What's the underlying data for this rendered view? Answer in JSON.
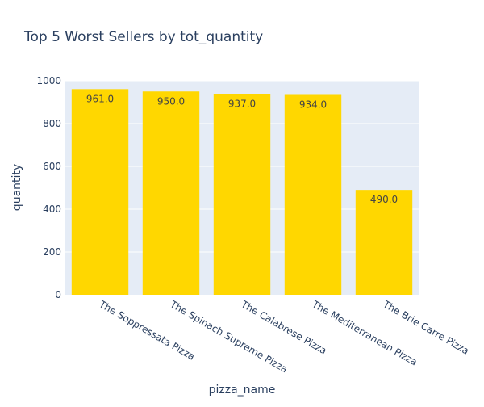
{
  "chart_data": {
    "type": "bar",
    "title": "Top 5 Worst Sellers by tot_quantity",
    "xlabel": "pizza_name",
    "ylabel": "quantity",
    "categories": [
      "The Soppressata Pizza",
      "The Spinach Supreme Pizza",
      "The Calabrese Pizza",
      "The Mediterranean Pizza",
      "The Brie Carre Pizza"
    ],
    "values": [
      961,
      950,
      937,
      934,
      490
    ],
    "data_labels": [
      "961.0",
      "950.0",
      "937.0",
      "934.0",
      "490.0"
    ],
    "ylim": [
      0,
      1000
    ],
    "yticks": [
      0,
      200,
      400,
      600,
      800,
      1000
    ],
    "ytick_labels": [
      "0",
      "200",
      "400",
      "600",
      "800",
      "1000"
    ],
    "grid": true,
    "colors": {
      "bar": "#FFD700",
      "plot_bg": "#E5ECF6",
      "grid": "#FFFFFF",
      "text": "#2A3F5F",
      "title": "#2A3F5F",
      "data_label": "#444444"
    }
  }
}
